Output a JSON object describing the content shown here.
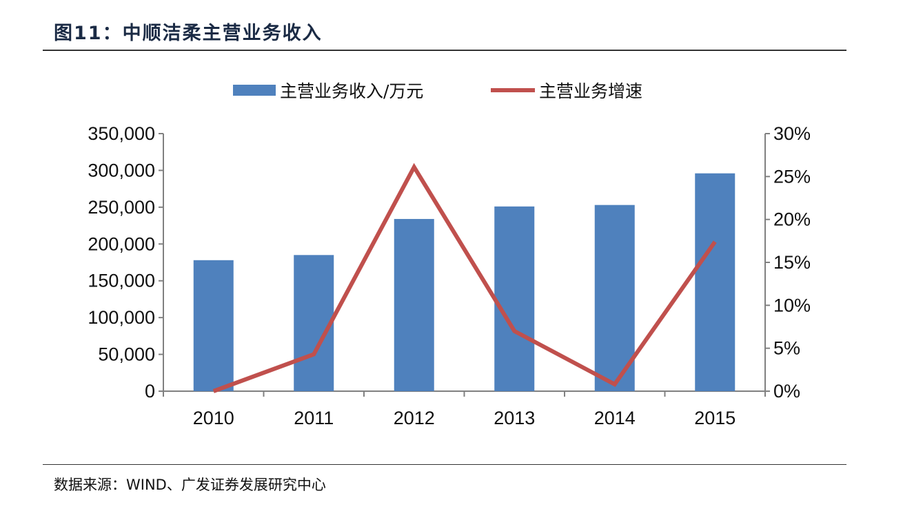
{
  "title": "图11：中顺洁柔主营业务收入",
  "source": "数据来源：WIND、广发证券发展研究中心",
  "chart_data": {
    "type": "bar+line",
    "categories": [
      "2010",
      "2011",
      "2012",
      "2013",
      "2014",
      "2015"
    ],
    "series": [
      {
        "name": "主营业务收入/万元",
        "type": "bar",
        "axis": "left",
        "color": "#4f81bd",
        "values": [
          178000,
          185000,
          234000,
          251000,
          253000,
          296000
        ]
      },
      {
        "name": "主营业务增速",
        "type": "line",
        "axis": "right",
        "color": "#c0504d",
        "values": [
          0.0,
          4.3,
          26.1,
          7.0,
          0.8,
          17.4
        ]
      }
    ],
    "y_left": {
      "ylim": [
        0,
        350000
      ],
      "ticks": [
        "0",
        "50,000",
        "100,000",
        "150,000",
        "200,000",
        "250,000",
        "300,000",
        "350,000"
      ]
    },
    "y_right": {
      "ylim": [
        0,
        30
      ],
      "unit": "%",
      "ticks": [
        "0%",
        "5%",
        "10%",
        "15%",
        "20%",
        "25%",
        "30%"
      ]
    },
    "legend_position": "top",
    "grid": false
  }
}
